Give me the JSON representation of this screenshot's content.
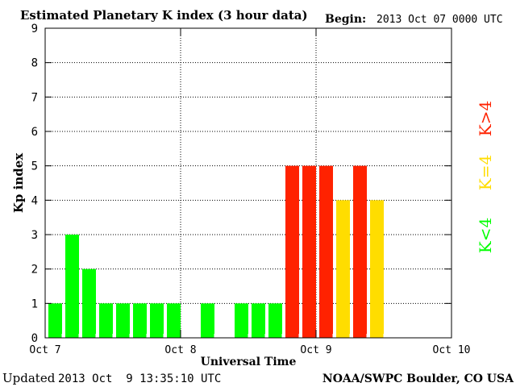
{
  "chart_data": {
    "type": "bar",
    "title": "Estimated Planetary K index (3 hour data)",
    "begin_label": "Begin:",
    "begin_value": "2013 Oct 07 0000 UTC",
    "xlabel": "Universal Time",
    "ylabel": "Kp index",
    "ylim": [
      0,
      9
    ],
    "yticks": [
      "0",
      "1",
      "2",
      "3",
      "4",
      "5",
      "6",
      "7",
      "8",
      "9"
    ],
    "x_tick_labels": [
      "Oct 7",
      "Oct 8",
      "Oct 9",
      "Oct 10"
    ],
    "bar_interval_hours": 3,
    "values": [
      1,
      3,
      2,
      1,
      1,
      1,
      1,
      1,
      0,
      1,
      0,
      1,
      1,
      1,
      5,
      5,
      5,
      4,
      5,
      4
    ],
    "colors": {
      "low": "#00ff00",
      "equal4": "#ffdd00",
      "high": "#ff2200"
    },
    "legend": {
      "low": "K<4",
      "equal4": "K=4",
      "high": "K>4"
    },
    "grid": "dotted"
  },
  "footer": {
    "updated_label": "Updated",
    "updated_value": "2013 Oct  9 13:35:10 UTC",
    "source": "NOAA/SWPC Boulder, CO USA"
  }
}
